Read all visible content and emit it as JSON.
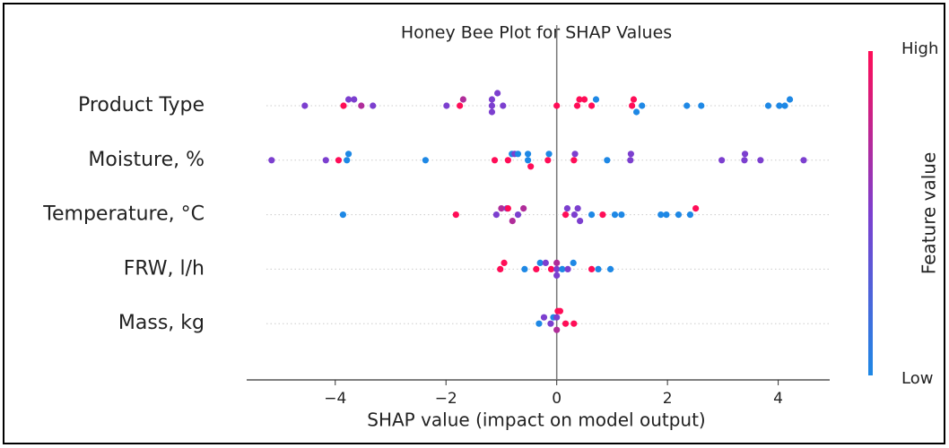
{
  "chart_data": {
    "type": "beeswarm",
    "title": "Honey Bee Plot for SHAP Values",
    "x_label": "SHAP value (impact on model output)",
    "categories": [
      "Product Type",
      "Moisture, %",
      "Temperature, °C",
      "FRW, l/h",
      "Mass, kg"
    ],
    "points": [
      {
        "values": [
          -4.55,
          -3.85,
          -3.76,
          -3.66,
          -3.53,
          -3.32,
          -1.99,
          -1.75,
          -1.69,
          -1.17,
          -1.17,
          -1.17,
          -1.07,
          -0.97,
          0,
          0.37,
          0.41,
          0.5,
          0.63,
          0.71,
          1.36,
          1.39,
          1.44,
          1.54,
          2.35,
          2.61,
          3.82,
          4.02,
          4.12,
          4.21
        ],
        "colors": [
          "#7c3fcf",
          "#ff0d57",
          "#7c3fcf",
          "#7c3fcf",
          "#b02c9a",
          "#7c3fcf",
          "#7c3fcf",
          "#ff0d57",
          "#b02c9a",
          "#7c3fcf",
          "#7c3fcf",
          "#7c3fcf",
          "#7c3fcf",
          "#7c3fcf",
          "#ff0d57",
          "#ff0d57",
          "#ff0d57",
          "#ff0d57",
          "#ff0d57",
          "#1e88e5",
          "#ff0d57",
          "#ff0d57",
          "#1e88e5",
          "#1e88e5",
          "#1e88e5",
          "#1e88e5",
          "#1e88e5",
          "#1e88e5",
          "#1e88e5",
          "#1e88e5"
        ]
      },
      {
        "values": [
          -5.15,
          -4.17,
          -3.94,
          -3.79,
          -3.76,
          -2.37,
          -1.12,
          -0.88,
          -0.81,
          -0.76,
          -0.7,
          -0.52,
          -0.52,
          -0.47,
          -0.16,
          -0.14,
          0.31,
          0.33,
          0.91,
          1.33,
          1.34,
          2.98,
          3.39,
          3.4,
          3.68,
          4.46
        ],
        "colors": [
          "#7c3fcf",
          "#7c3fcf",
          "#ff0d57",
          "#1e88e5",
          "#1e88e5",
          "#1e88e5",
          "#ff0d57",
          "#ff0d57",
          "#1e88e5",
          "#7c3fcf",
          "#1e88e5",
          "#1e88e5",
          "#1e88e5",
          "#ff0d57",
          "#ff0d57",
          "#1e88e5",
          "#ff0d57",
          "#7c3fcf",
          "#1e88e5",
          "#7c3fcf",
          "#7c3fcf",
          "#7c3fcf",
          "#7c3fcf",
          "#7c3fcf",
          "#7c3fcf",
          "#7c3fcf"
        ]
      },
      {
        "values": [
          -3.86,
          -1.82,
          -1.09,
          -1.0,
          -0.9,
          -0.88,
          -0.8,
          -0.7,
          -0.6,
          0.16,
          0.19,
          0.32,
          0.38,
          0.42,
          0.63,
          0.83,
          1.05,
          1.17,
          1.88,
          1.98,
          2.2,
          2.41,
          2.51
        ],
        "colors": [
          "#1e88e5",
          "#ff0d57",
          "#7c3fcf",
          "#b02c9a",
          "#7c3fcf",
          "#ff0d57",
          "#b02c9a",
          "#7c3fcf",
          "#b02c9a",
          "#ff0d57",
          "#7c3fcf",
          "#7c3fcf",
          "#7c3fcf",
          "#7c3fcf",
          "#1e88e5",
          "#ff0d57",
          "#1e88e5",
          "#1e88e5",
          "#1e88e5",
          "#1e88e5",
          "#1e88e5",
          "#1e88e5",
          "#ff0d57"
        ]
      },
      {
        "values": [
          -1.02,
          -0.95,
          -0.58,
          -0.37,
          -0.3,
          -0.2,
          -0.1,
          0,
          0,
          0,
          0.1,
          0.2,
          0.3,
          0.63,
          0.75,
          0.97
        ],
        "colors": [
          "#ff0d57",
          "#ff0d57",
          "#1e88e5",
          "#ff0d57",
          "#1e88e5",
          "#7c3fcf",
          "#ff0d57",
          "#7c3fcf",
          "#b02c9a",
          "#7c3fcf",
          "#1e88e5",
          "#7c3fcf",
          "#1e88e5",
          "#ff0d57",
          "#1e88e5",
          "#1e88e5"
        ]
      },
      {
        "values": [
          -0.32,
          -0.23,
          -0.11,
          -0.06,
          0,
          0,
          0.02,
          0.06,
          0.16,
          0.31
        ],
        "colors": [
          "#1e88e5",
          "#7c3fcf",
          "#7c3fcf",
          "#1e88e5",
          "#7c3fcf",
          "#b02c9a",
          "#ff0d57",
          "#ff0d57",
          "#ff0d57",
          "#ff0d57"
        ]
      }
    ],
    "xlim": [
      -5.6,
      4.93
    ],
    "xticks": [
      {
        "value": -4,
        "label": "−4"
      },
      {
        "value": -2,
        "label": "−2"
      },
      0,
      2,
      4
    ],
    "colorbar": {
      "title": "Feature value",
      "high_label": "High",
      "low_label": "Low",
      "colors": [
        "#1e88e5",
        "#7c3fcf",
        "#ff0d57"
      ]
    }
  }
}
